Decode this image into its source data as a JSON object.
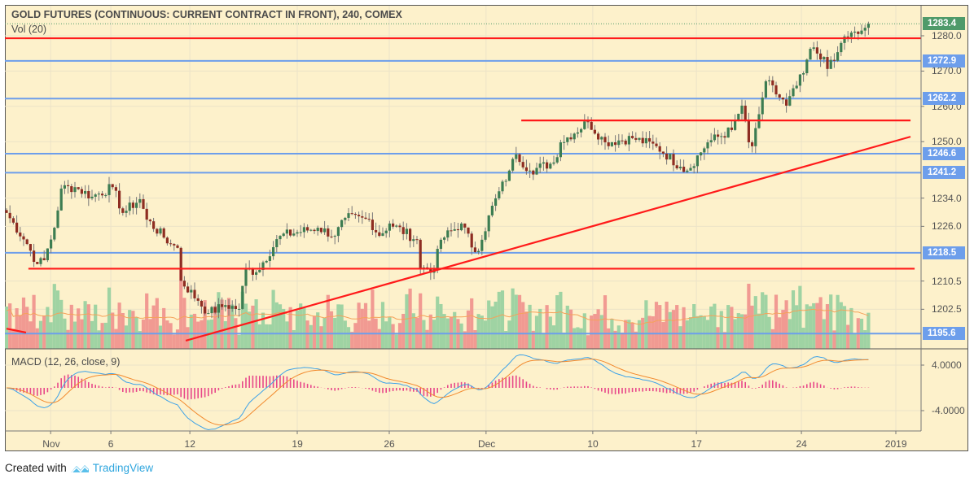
{
  "header": {
    "title": "GOLD FUTURES (CONTINUOUS: CURRENT CONTRACT IN FRONT), 240, COMEX",
    "volume_label": "Vol (20)",
    "macd_label": "MACD (12, 26, close, 9)"
  },
  "footer": {
    "created_with": "Created with",
    "brand": "TradingView"
  },
  "colors": {
    "background": "#fdf1cb",
    "up": "#3d7d52",
    "down": "#8e2d22",
    "vol_up": "#9fd3a3",
    "vol_down": "#f19a92",
    "level_line": "#6d9eeb",
    "trend_line": "#ff1a1a",
    "macd": "#3da2e8",
    "signal": "#f28a2e",
    "hist": "#e8488a",
    "last_price": "#4f9a6a"
  },
  "chart_data": {
    "type": "candlestick",
    "title": "GOLD FUTURES (CONTINUOUS: CURRENT CONTRACT IN FRONT), 240, COMEX",
    "last_price": "1283.4",
    "ylim": [
      1191,
      1289
    ],
    "price_ticks": [
      "1280.0",
      "1270.0",
      "1260.0",
      "1250.0",
      "1234.0",
      "1226.0",
      "1210.5",
      "1202.5"
    ],
    "macd_ticks": [
      "4.0000",
      "-4.0000"
    ],
    "time_ticks": [
      {
        "bar": 12.9,
        "label": "Nov"
      },
      {
        "bar": 30.5,
        "label": "6"
      },
      {
        "bar": 53.6,
        "label": "12"
      },
      {
        "bar": 85,
        "label": "19"
      },
      {
        "bar": 111.9,
        "label": "26"
      },
      {
        "bar": 140.2,
        "label": "Dec"
      },
      {
        "bar": 171.4,
        "label": "10"
      },
      {
        "bar": 201.7,
        "label": "17"
      },
      {
        "bar": 232.4,
        "label": "24"
      },
      {
        "bar": 260,
        "label": "2019"
      }
    ],
    "horizontal_levels": [
      "1272.9",
      "1262.2",
      "1246.6",
      "1241.2",
      "1218.5",
      "1195.6"
    ],
    "red_lines": [
      {
        "from": [
          -1,
          1279.3
        ],
        "to": [
          268,
          1279.3
        ]
      },
      {
        "from": [
          150.5,
          1256.0
        ],
        "to": [
          264.3,
          1256.0
        ]
      },
      {
        "from": [
          6.4,
          1214.0
        ],
        "to": [
          265.5,
          1214.0
        ]
      },
      {
        "from": [
          52.4,
          1193.6
        ],
        "to": [
          264.3,
          1251.4
        ]
      },
      {
        "from": [
          0,
          1197.0
        ],
        "to": [
          5.7,
          1195.9
        ]
      }
    ],
    "close_anchors": [
      [
        0,
        1229.8
      ],
      [
        6,
        1221
      ],
      [
        9,
        1215.3
      ],
      [
        11,
        1216.4
      ],
      [
        14,
        1225.6
      ],
      [
        16,
        1236.7
      ],
      [
        20,
        1237.1
      ],
      [
        25,
        1234.4
      ],
      [
        31,
        1237.1
      ],
      [
        34,
        1229.8
      ],
      [
        39,
        1233.7
      ],
      [
        41,
        1227.9
      ],
      [
        48,
        1221
      ],
      [
        50,
        1219.9
      ],
      [
        51,
        1210.6
      ],
      [
        56,
        1204.9
      ],
      [
        59,
        1201.4
      ],
      [
        64,
        1203.7
      ],
      [
        68,
        1202.6
      ],
      [
        70,
        1214.1
      ],
      [
        73,
        1213
      ],
      [
        80,
        1223.3
      ],
      [
        91,
        1225.6
      ],
      [
        96,
        1223.3
      ],
      [
        99,
        1228.4
      ],
      [
        106,
        1227.9
      ],
      [
        109,
        1223.3
      ],
      [
        112,
        1226.8
      ],
      [
        120,
        1222.2
      ],
      [
        121,
        1214.1
      ],
      [
        125,
        1214.1
      ],
      [
        127,
        1222.2
      ],
      [
        133,
        1226.8
      ],
      [
        137,
        1218.7
      ],
      [
        139,
        1222.2
      ],
      [
        141,
        1229.1
      ],
      [
        147,
        1241.8
      ],
      [
        149,
        1246.4
      ],
      [
        153,
        1241.8
      ],
      [
        160,
        1244.1
      ],
      [
        162,
        1249.8
      ],
      [
        170,
        1255.6
      ],
      [
        175,
        1249.8
      ],
      [
        183,
        1251
      ],
      [
        190,
        1248.7
      ],
      [
        197,
        1242.9
      ],
      [
        199,
        1241.8
      ],
      [
        205,
        1249.8
      ],
      [
        212,
        1253.3
      ],
      [
        215,
        1260.2
      ],
      [
        217,
        1249.8
      ],
      [
        218,
        1248.7
      ],
      [
        221,
        1262.5
      ],
      [
        222,
        1267.1
      ],
      [
        228,
        1260.2
      ],
      [
        233,
        1269.4
      ],
      [
        235,
        1276.3
      ],
      [
        239,
        1274
      ],
      [
        240,
        1270.6
      ],
      [
        242,
        1272.9
      ],
      [
        245,
        1279.8
      ],
      [
        249,
        1280.5
      ],
      [
        252,
        1283.4
      ]
    ],
    "volume_ma_period": 20,
    "macd_params": {
      "fast": 12,
      "slow": 26,
      "signal": 9
    }
  }
}
